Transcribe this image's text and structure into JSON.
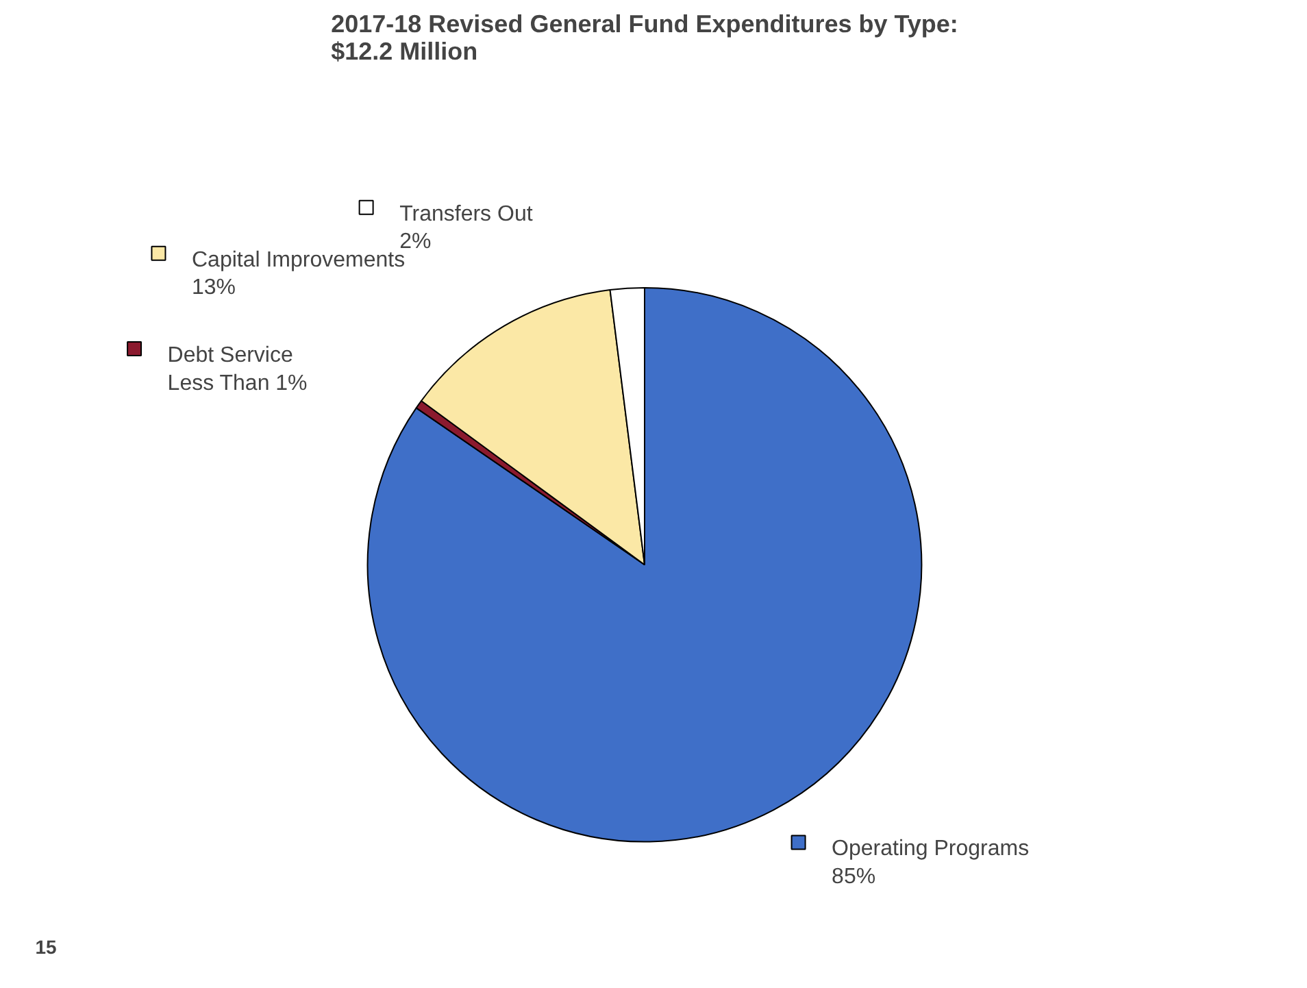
{
  "chart_data": {
    "type": "pie",
    "title": "2017-18 Revised General Fund Expenditures by Type:\n$12.2 Million",
    "categories": [
      "Operating Programs",
      "Debt Service",
      "Capital Improvements",
      "Transfers Out"
    ],
    "values": [
      85,
      0.5,
      13,
      2
    ],
    "colors": [
      "#3f6fc8",
      "#8b1a2e",
      "#fbe8a6",
      "#ffffff"
    ],
    "value_labels": [
      "85%",
      "Less Than 1%",
      "13%",
      "2%"
    ],
    "legend": "left",
    "annotations": [
      "15"
    ]
  }
}
